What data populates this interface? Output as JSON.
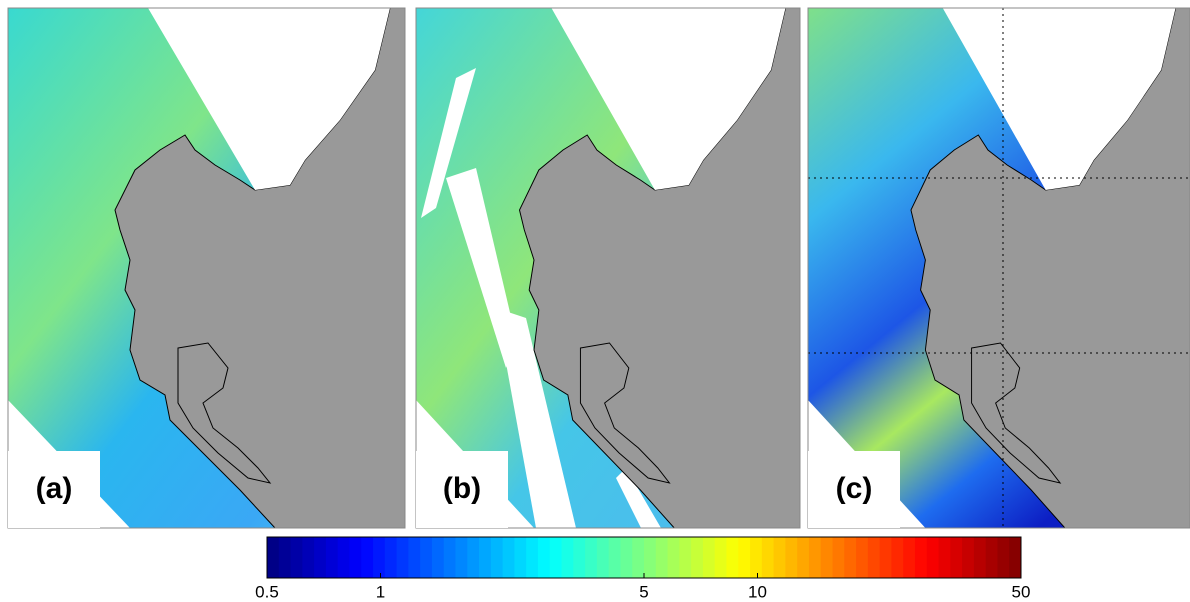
{
  "panels": [
    {
      "label": "(a)"
    },
    {
      "label": "(b)"
    },
    {
      "label": "(c)"
    }
  ],
  "colorbar": {
    "scale": "log",
    "lim": [
      0.5,
      50
    ],
    "ticks": [
      0.5,
      1,
      5,
      10,
      50
    ],
    "colormap": "jet"
  }
}
